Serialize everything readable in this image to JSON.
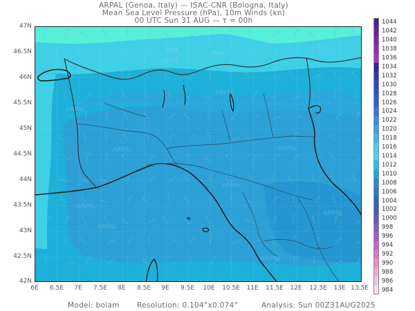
{
  "header": {
    "line1": "ARPAL (Genoa, Italy)  —  ISAC-CNR (Bologna, Italy)",
    "line2": "Mean Sea Level Pressure (hPa), 10m Winds (kn)",
    "line3": "00 UTC Sun 31 AUG  —  τ = 00h"
  },
  "map": {
    "lat_ticks": [
      "47N",
      "46.5N",
      "46N",
      "45.5N",
      "45N",
      "44.5N",
      "44N",
      "43.5N",
      "43N",
      "42.5N",
      "42N"
    ],
    "lon_ticks": [
      "6E",
      "6.5E",
      "7E",
      "7.5E",
      "8E",
      "8.5E",
      "9E",
      "9.5E",
      "10E",
      "10.5E",
      "11E",
      "11.5E",
      "12E",
      "12.5E",
      "13E",
      "13.5E"
    ],
    "isobar_labels": [
      "1014",
      "1014",
      "1014"
    ],
    "watermark": "ARPAL",
    "colors": {
      "p1012": "#1db0d8",
      "p1010": "#2da0d6",
      "p1008": "#3a8dcf",
      "p1014": "#3fd0e8",
      "p1016": "#55f0d8",
      "coast": "#1a1a1a",
      "border": "#333333",
      "region": "#2a5570"
    }
  },
  "colorbar": {
    "levels": [
      "1044",
      "1042",
      "1040",
      "1038",
      "1036",
      "1034",
      "1032",
      "1030",
      "1028",
      "1026",
      "1024",
      "1022",
      "1020",
      "1018",
      "1016",
      "1014",
      "1012",
      "1010",
      "1008",
      "1006",
      "1004",
      "1002",
      "1000",
      "998",
      "996",
      "994",
      "992",
      "990",
      "988",
      "986",
      "984"
    ],
    "colors": [
      "#5a1a8a",
      "#6a2296",
      "#7a2aa2",
      "#8a32ae",
      "#9a3aba",
      "#2a2a9a",
      "#2a3ab0",
      "#2a4ac2",
      "#2a5ad0",
      "#3060d8",
      "#3676e0",
      "#3a8ce8",
      "#3aa4ee",
      "#3ab8f0",
      "#46d0e8",
      "#40d8f2",
      "#2ac0e8",
      "#22a8de",
      "#2490d2",
      "#2a7ec8",
      "#3068bc",
      "#4a5ab0",
      "#6a58b6",
      "#8a5cbe",
      "#a65cc4",
      "#c266c8",
      "#d878cc",
      "#e48ed2",
      "#ecaada",
      "#f2c4e4",
      "#f8ddee"
    ]
  },
  "footer": {
    "model": "Model: bolam",
    "resolution": "Resolution: 0.104°x0.074°",
    "analysis": "Analysis: Sun 00Z31AUG2025"
  }
}
